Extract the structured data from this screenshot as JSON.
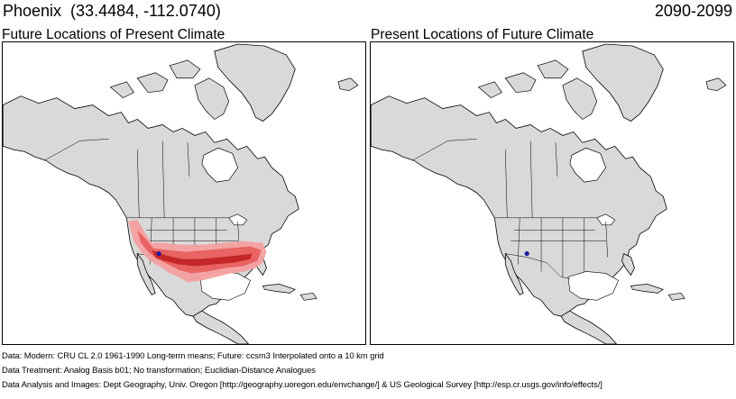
{
  "header": {
    "location": "Phoenix  (33.4484, -112.0740)",
    "period": "2090-2099"
  },
  "panels": [
    {
      "title": "Future Locations of Present Climate"
    },
    {
      "title": "Present Locations of Future Climate"
    }
  ],
  "site_marker": {
    "label": "Phoenix",
    "lat": 33.4484,
    "lon": -112.074,
    "color": "#1a1aa0"
  },
  "colors": {
    "land": "#d9d9d9",
    "ocean": "#ffffff",
    "boundary": "#000000",
    "analog_light": "#f4a0a0",
    "analog_medium": "#e86060",
    "analog_dark": "#c02020"
  },
  "footer": {
    "data": "Data:  Modern: CRU CL 2.0 1961-1990 Long-term means; Future: ccsm3 Interpolated onto a 10 km grid",
    "treatment": "Data Treatment:  Analog Basis b01; No transformation; Euclidian-Distance Analogues",
    "analysis": "Data Analysis and Images:  Dept Geography, Univ. Oregon [http://geography.uoregon.edu/envchange/] & US Geological Survey [http://esp.cr.usgs.gov/info/effects/]"
  }
}
